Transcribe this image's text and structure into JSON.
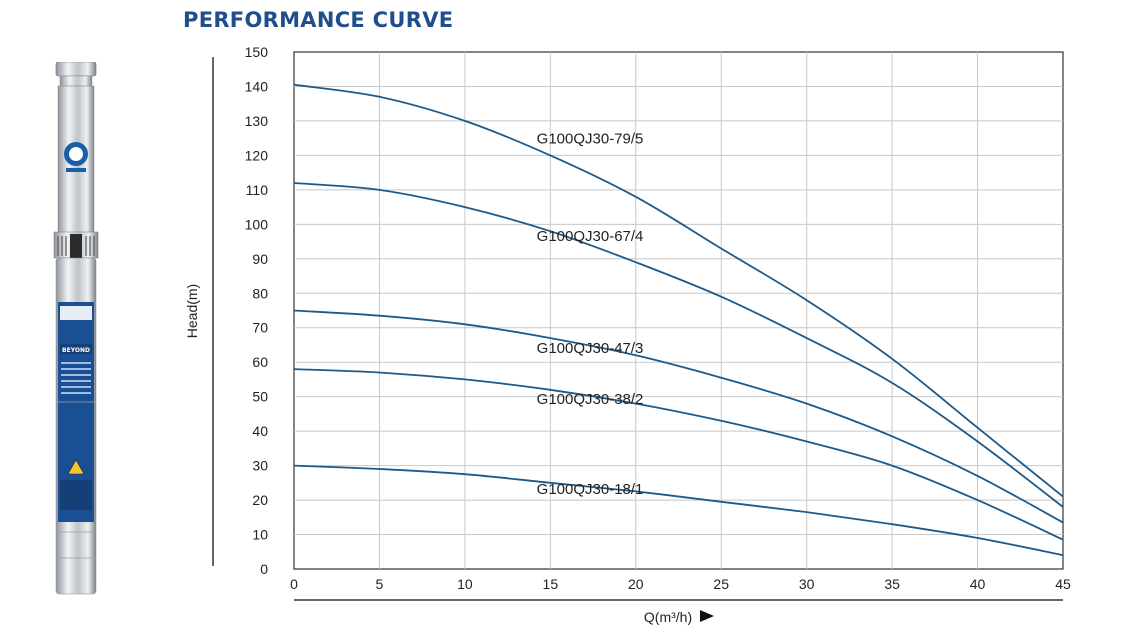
{
  "title": "PERFORMANCE CURVE",
  "colors": {
    "title": "#1f4e8c",
    "curve": "#1d5a8a",
    "grid": "#c8c8c8",
    "axis": "#333333",
    "steel": "#c9cdd1",
    "label_blue": "#17509a"
  },
  "product_image": {
    "icon": "submersible-pump-photo",
    "brand_text": "BEYOND"
  },
  "chart_data": {
    "type": "line",
    "title": "PERFORMANCE CURVE",
    "xlabel": "Q(m³/h)",
    "ylabel": "Head(m)",
    "xlim": [
      0,
      45
    ],
    "ylim": [
      0,
      150
    ],
    "x_ticks": [
      0,
      5,
      10,
      15,
      20,
      25,
      30,
      35,
      40,
      45
    ],
    "y_ticks": [
      0,
      10,
      20,
      30,
      40,
      50,
      60,
      70,
      80,
      90,
      100,
      110,
      120,
      130,
      140,
      150
    ],
    "grid": true,
    "x": [
      0,
      5,
      10,
      15,
      20,
      25,
      30,
      35,
      40,
      45
    ],
    "series": [
      {
        "name": "G100QJ30-79/5",
        "values": [
          140.5,
          137,
          130,
          120,
          108,
          93,
          78,
          61,
          41,
          21
        ]
      },
      {
        "name": "G100QJ30-67/4",
        "values": [
          112,
          110,
          105,
          98,
          89,
          79,
          67,
          54,
          37,
          18
        ]
      },
      {
        "name": "G100QJ30-47/3",
        "values": [
          75,
          73.5,
          71,
          67,
          62,
          55.5,
          48,
          38.5,
          27,
          13.5
        ]
      },
      {
        "name": "G100QJ30-38/2",
        "values": [
          58,
          57,
          55,
          52,
          48,
          43,
          37,
          30,
          20,
          8.5
        ]
      },
      {
        "name": "G100QJ30-18/1",
        "values": [
          30,
          29,
          27.5,
          25,
          22.5,
          19.5,
          16.5,
          13,
          9,
          4
        ]
      }
    ]
  }
}
